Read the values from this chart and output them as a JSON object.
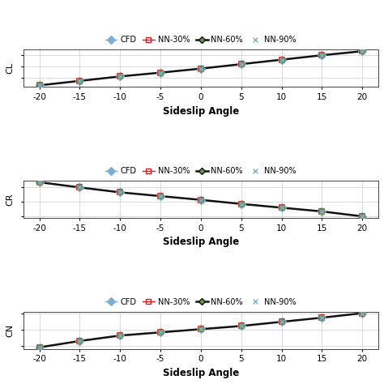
{
  "x": [
    -20,
    -15,
    -10,
    -5,
    0,
    5,
    10,
    15,
    20
  ],
  "CL": [
    -0.85,
    -0.65,
    -0.45,
    -0.28,
    -0.1,
    0.1,
    0.3,
    0.5,
    0.68
  ],
  "CR": [
    0.68,
    0.5,
    0.33,
    0.2,
    0.07,
    -0.07,
    -0.2,
    -0.33,
    -0.5
  ],
  "CN": [
    -0.55,
    -0.35,
    -0.18,
    -0.08,
    0.02,
    0.12,
    0.25,
    0.38,
    0.52
  ],
  "xlabel": "Sideslip Angle",
  "ylabel_CL": "CL",
  "ylabel_CR": "CR",
  "ylabel_CN": "CN",
  "xticks": [
    -20,
    -15,
    -10,
    -5,
    0,
    5,
    10,
    15,
    20
  ],
  "legend_labels": [
    "CFD",
    "NN-30%",
    "NN-60%",
    "NN-90%"
  ],
  "cfd_color": "#7daed4",
  "nn30_color": "#cc2222",
  "nn60_color": "#669944",
  "nn90_color": "#7daed4",
  "line_color": "#111111",
  "marker_cfd": "D",
  "marker_nn30": "s",
  "marker_nn60": "D",
  "marker_nn90": "x",
  "background_color": "#ffffff",
  "grid_color": "#cccccc"
}
